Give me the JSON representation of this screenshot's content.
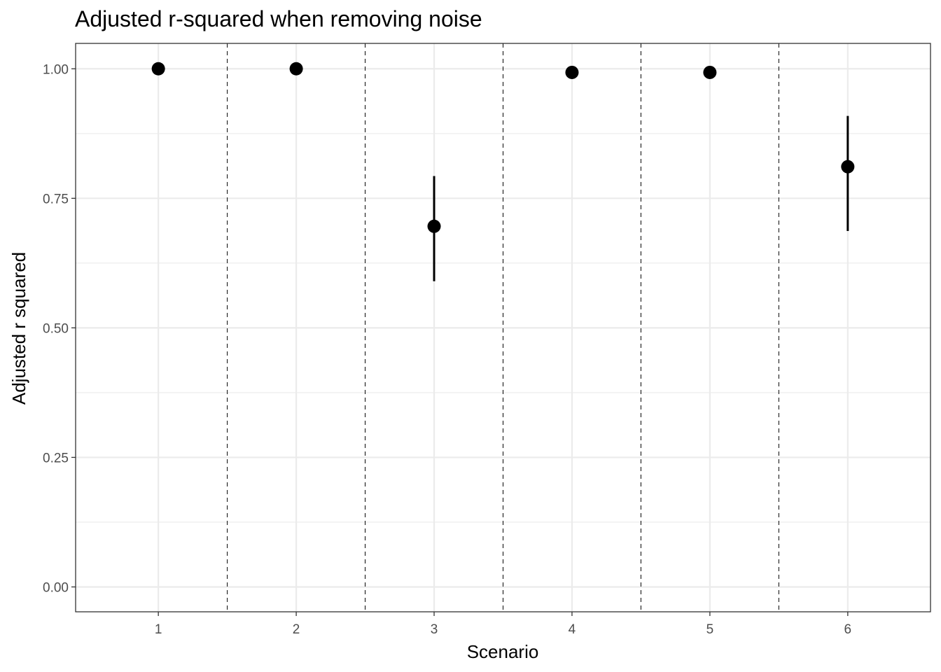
{
  "chart_data": {
    "type": "scatter",
    "title": "Adjusted r-squared when removing noise",
    "xlabel": "Scenario",
    "ylabel": "Adjusted r squared",
    "x_categories": [
      "1",
      "2",
      "3",
      "4",
      "5",
      "6"
    ],
    "y_ticks": [
      "0.00",
      "0.25",
      "0.50",
      "0.75",
      "1.00"
    ],
    "ylim": [
      -0.048,
      1.049
    ],
    "xlim": [
      0.4,
      6.6
    ],
    "grid": true,
    "separators_at": [
      1.5,
      2.5,
      3.5,
      4.5,
      5.5
    ],
    "points": [
      {
        "x": 1,
        "y": 1.0,
        "lower": null,
        "upper": null
      },
      {
        "x": 2,
        "y": 1.0,
        "lower": null,
        "upper": null
      },
      {
        "x": 3,
        "y": 0.696,
        "lower": 0.59,
        "upper": 0.793
      },
      {
        "x": 4,
        "y": 0.993,
        "lower": null,
        "upper": null
      },
      {
        "x": 5,
        "y": 0.993,
        "lower": null,
        "upper": null
      },
      {
        "x": 6,
        "y": 0.811,
        "lower": 0.687,
        "upper": 0.909
      }
    ],
    "point_color": "#000000"
  }
}
